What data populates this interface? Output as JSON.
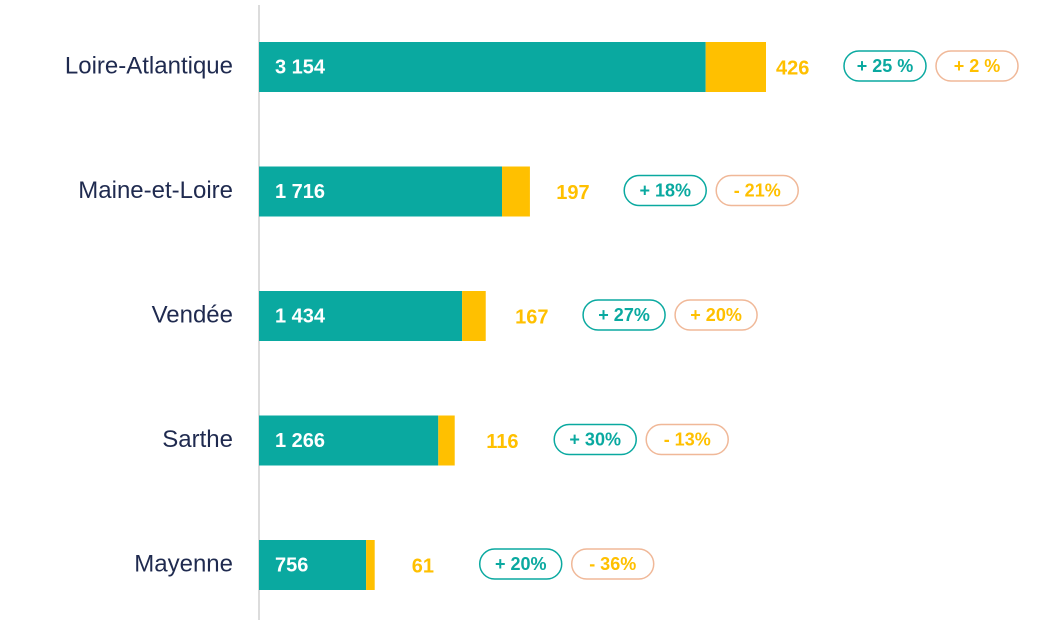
{
  "chart_data": {
    "type": "bar",
    "orientation": "horizontal",
    "stacked": true,
    "categories": [
      "Loire-Atlantique",
      "Maine-et-Loire",
      "Vendée",
      "Sarthe",
      "Mayenne"
    ],
    "series": [
      {
        "color": "#0aa9a0",
        "values": [
          3154,
          1716,
          1434,
          1266,
          756
        ],
        "value_labels": [
          "3 154",
          "1 716",
          "1 434",
          "1 266",
          "756"
        ],
        "changes": [
          "+ 25 %",
          "+ 18%",
          "+ 27%",
          "+ 30%",
          "+ 20%"
        ]
      },
      {
        "color": "#ffc000",
        "values": [
          426,
          197,
          167,
          116,
          61
        ],
        "changes": [
          "+ 2 %",
          "- 21%",
          "+ 20%",
          "- 13%",
          "- 36%"
        ]
      }
    ]
  }
}
